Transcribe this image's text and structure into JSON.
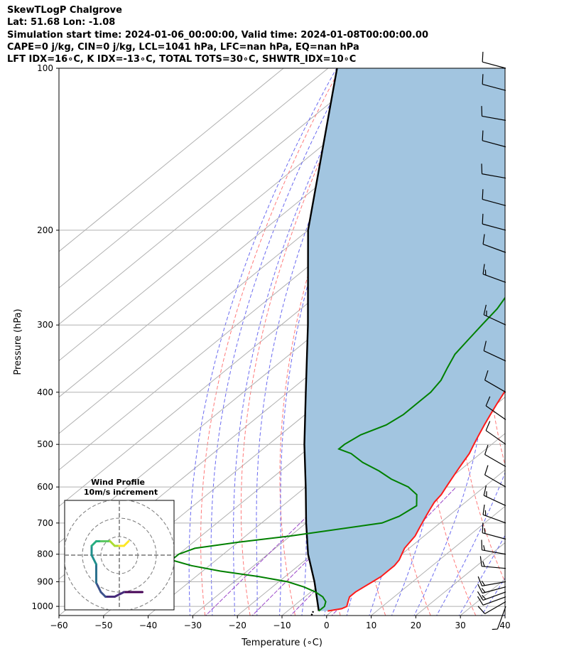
{
  "header": {
    "line1": "SkewTLogP Chalgrove",
    "line2": "Lat: 51.68   Lon: -1.08",
    "line3": "Simulation start time: 2024-01-06_00:00:00, Valid time: 2024-01-08T00:00:00.00",
    "line4": "CAPE=0 j/kg, CIN=0 j/kg, LCL=1041 hPa, LFC=nan hPa, EQ=nan hPa",
    "line5": "LFT IDX=16∘C, K IDX=-13∘C, TOTAL TOTS=30∘C, SHWTR_IDX=10∘C"
  },
  "chart_data": {
    "type": "skew-t log-p",
    "xlabel": "Temperature (∘C)",
    "ylabel": "Pressure (hPa)",
    "xlim": [
      -60,
      40
    ],
    "ylim": [
      1040,
      100
    ],
    "x_ticks": [
      "−60",
      "−50",
      "−40",
      "−30",
      "−20",
      "−10",
      "0",
      "10",
      "20",
      "30",
      "40"
    ],
    "y_ticks": [
      "100",
      "200",
      "300",
      "400",
      "500",
      "600",
      "700",
      "800",
      "900",
      "1000"
    ],
    "y_tick_values": [
      100,
      200,
      300,
      400,
      500,
      600,
      700,
      800,
      900,
      1000
    ],
    "grid": true,
    "colors": {
      "temperature": "#ff1a1a",
      "dewpoint": "#008000",
      "parcel": "#000000",
      "shade": "#a2c5e0",
      "dry_adiabat": "#ff7a7a",
      "moist_adiabat": "#6a6af0",
      "mixing_ratio": "#9a44c8",
      "isotherm": "#b0b0b0"
    },
    "temperature_profile": [
      [
        1020,
        -1
      ],
      [
        1010,
        1.5
      ],
      [
        1000,
        2
      ],
      [
        980,
        1
      ],
      [
        960,
        0
      ],
      [
        940,
        0
      ],
      [
        920,
        0.5
      ],
      [
        900,
        1
      ],
      [
        880,
        1.5
      ],
      [
        860,
        1.5
      ],
      [
        840,
        1.5
      ],
      [
        820,
        1
      ],
      [
        800,
        0
      ],
      [
        780,
        -1
      ],
      [
        760,
        -1.5
      ],
      [
        740,
        -2
      ],
      [
        720,
        -3
      ],
      [
        700,
        -4
      ],
      [
        680,
        -5
      ],
      [
        660,
        -6
      ],
      [
        640,
        -7
      ],
      [
        620,
        -7.5
      ],
      [
        600,
        -8.5
      ],
      [
        580,
        -9.5
      ],
      [
        560,
        -10.5
      ],
      [
        540,
        -11.5
      ],
      [
        520,
        -12.5
      ],
      [
        500,
        -14
      ],
      [
        480,
        -15.5
      ],
      [
        460,
        -17
      ],
      [
        440,
        -18.5
      ],
      [
        420,
        -20
      ],
      [
        400,
        -21.5
      ],
      [
        380,
        -23
      ],
      [
        360,
        -24.5
      ],
      [
        340,
        -26
      ],
      [
        320,
        -27.5
      ],
      [
        300,
        -29.5
      ],
      [
        280,
        -31
      ],
      [
        260,
        -32.5
      ],
      [
        250,
        -33.5
      ],
      [
        240,
        -34
      ],
      [
        230,
        -35
      ],
      [
        220,
        -37
      ],
      [
        210,
        -39
      ],
      [
        200,
        -41
      ],
      [
        190,
        -43
      ],
      [
        180,
        -45.5
      ],
      [
        170,
        -48
      ],
      [
        160,
        -50.5
      ],
      [
        150,
        -53
      ],
      [
        140,
        -56
      ],
      [
        130,
        -59
      ],
      [
        120,
        -62.5
      ],
      [
        110,
        -66
      ],
      [
        100,
        -69.5
      ]
    ],
    "dewpoint_profile": [
      [
        1020,
        -3
      ],
      [
        1000,
        -3
      ],
      [
        980,
        -4
      ],
      [
        960,
        -6
      ],
      [
        940,
        -9
      ],
      [
        920,
        -13
      ],
      [
        900,
        -18
      ],
      [
        880,
        -26
      ],
      [
        860,
        -36
      ],
      [
        840,
        -44
      ],
      [
        820,
        -50
      ],
      [
        800,
        -50
      ],
      [
        780,
        -48
      ],
      [
        760,
        -40
      ],
      [
        740,
        -30
      ],
      [
        700,
        -13
      ],
      [
        680,
        -11
      ],
      [
        650,
        -10
      ],
      [
        620,
        -13
      ],
      [
        600,
        -17
      ],
      [
        580,
        -23
      ],
      [
        560,
        -28
      ],
      [
        540,
        -34
      ],
      [
        520,
        -39
      ],
      [
        510,
        -43
      ],
      [
        500,
        -43
      ],
      [
        480,
        -42
      ],
      [
        460,
        -39
      ],
      [
        440,
        -38
      ],
      [
        420,
        -38
      ],
      [
        400,
        -38
      ],
      [
        380,
        -39
      ],
      [
        360,
        -41
      ],
      [
        340,
        -43
      ],
      [
        320,
        -44
      ],
      [
        300,
        -45
      ],
      [
        280,
        -46
      ],
      [
        260,
        -48
      ],
      [
        250,
        -50
      ],
      [
        240,
        -52
      ],
      [
        230,
        -53
      ],
      [
        210,
        -51
      ],
      [
        200,
        -51
      ],
      [
        180,
        -54
      ],
      [
        170,
        -56
      ],
      [
        160,
        -53
      ],
      [
        140,
        -51
      ],
      [
        120,
        -50
      ],
      [
        100,
        -50
      ]
    ],
    "parcel_profile": [
      [
        1020,
        -3
      ],
      [
        900,
        -12
      ],
      [
        800,
        -21
      ],
      [
        700,
        -30
      ],
      [
        600,
        -40
      ],
      [
        500,
        -52
      ],
      [
        400,
        -66
      ],
      [
        300,
        -84
      ],
      [
        200,
        -110
      ],
      [
        100,
        -148
      ]
    ],
    "wind_barbs": [
      [
        1000,
        5,
        200
      ],
      [
        980,
        10,
        240
      ],
      [
        960,
        10,
        250
      ],
      [
        940,
        15,
        250
      ],
      [
        920,
        15,
        255
      ],
      [
        900,
        15,
        260
      ],
      [
        850,
        15,
        275
      ],
      [
        800,
        15,
        280
      ],
      [
        750,
        15,
        285
      ],
      [
        700,
        15,
        290
      ],
      [
        650,
        15,
        295
      ],
      [
        600,
        10,
        300
      ],
      [
        550,
        10,
        300
      ],
      [
        500,
        10,
        305
      ],
      [
        450,
        10,
        305
      ],
      [
        400,
        10,
        300
      ],
      [
        350,
        10,
        295
      ],
      [
        300,
        15,
        295
      ],
      [
        250,
        15,
        290
      ],
      [
        220,
        10,
        290
      ],
      [
        200,
        10,
        285
      ],
      [
        180,
        10,
        285
      ],
      [
        160,
        10,
        280
      ],
      [
        140,
        10,
        285
      ],
      [
        125,
        10,
        280
      ],
      [
        110,
        10,
        285
      ],
      [
        100,
        10,
        285
      ]
    ],
    "inset": {
      "title": "Wind Profile",
      "subtitle": "10m/s increment",
      "hodograph": [
        [
          5,
          -8
        ],
        [
          3,
          -8
        ],
        [
          1,
          -8
        ],
        [
          -1,
          -9
        ],
        [
          -3,
          -9
        ],
        [
          -4,
          -8
        ],
        [
          -5,
          -6
        ],
        [
          -5,
          -4
        ],
        [
          -5,
          -2
        ],
        [
          -6,
          0
        ],
        [
          -6,
          2
        ],
        [
          -5,
          3
        ],
        [
          -4,
          3
        ],
        [
          -3,
          3
        ],
        [
          -2,
          3
        ],
        [
          -1,
          2
        ],
        [
          0,
          2
        ],
        [
          1,
          2
        ],
        [
          2,
          3
        ]
      ]
    }
  }
}
